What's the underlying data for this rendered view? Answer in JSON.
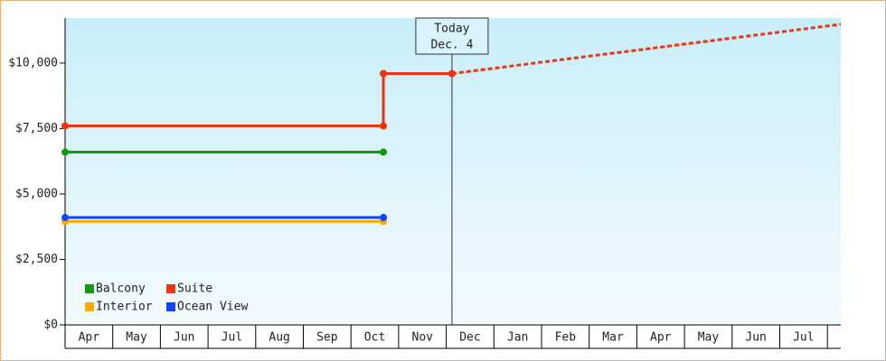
{
  "chart_data": {
    "type": "line",
    "categories": [
      "Apr",
      "May",
      "Jun",
      "Jul",
      "Aug",
      "Sep",
      "Oct",
      "Nov",
      "Dec",
      "Jan",
      "Feb",
      "Mar",
      "Apr",
      "May",
      "Jun",
      "Jul"
    ],
    "xlim": [
      0,
      16.28
    ],
    "ylim": [
      0,
      11720
    ],
    "yticks": [
      {
        "value": 0,
        "label": "$0"
      },
      {
        "value": 2500,
        "label": "$2,500"
      },
      {
        "value": 5000,
        "label": "$5,000"
      },
      {
        "value": 7500,
        "label": "$7,500"
      },
      {
        "value": 10000,
        "label": "$10,000"
      }
    ],
    "series": [
      {
        "name": "Balcony",
        "color": "#119911",
        "x": [
          0,
          6.68
        ],
        "values": [
          6600,
          6600
        ]
      },
      {
        "name": "Suite",
        "color": "#ee3311",
        "x": [
          0,
          6.68,
          6.68,
          8.12
        ],
        "values": [
          7600,
          7600,
          9600,
          9600
        ],
        "forecast": {
          "x": [
            8.12,
            16.28
          ],
          "values": [
            9600,
            11480
          ]
        }
      },
      {
        "name": "Interior",
        "color": "#ffaa00",
        "x": [
          0,
          6.68
        ],
        "values": [
          3950,
          3950
        ]
      },
      {
        "name": "Ocean View",
        "color": "#1144ff",
        "x": [
          0,
          6.68
        ],
        "values": [
          4100,
          4100
        ]
      }
    ],
    "annotation": {
      "x": 8.12,
      "lines": [
        "Today",
        "Dec. 4"
      ]
    },
    "legend": "bottom-left"
  }
}
